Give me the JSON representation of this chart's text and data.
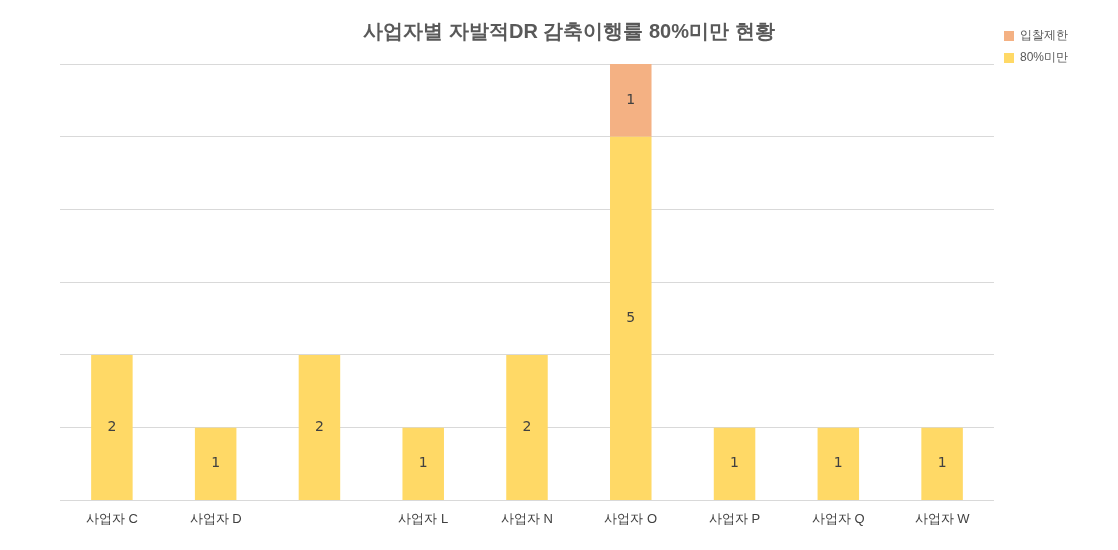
{
  "chart_data": {
    "type": "bar",
    "title": "사업자별 자발적DR 감축이행률 80%미만 현황",
    "stacked": true,
    "categories": [
      "사업자 C",
      "사업자 D",
      null,
      "사업자 L",
      "사업자 N",
      "사업자 O",
      "사업자 P",
      "사업자 Q",
      "사업자 W"
    ],
    "series": [
      {
        "name": "80%미만",
        "color": "#ffd966",
        "values": [
          2,
          1,
          2,
          1,
          2,
          5,
          1,
          1,
          1
        ]
      },
      {
        "name": "입찰제한",
        "color": "#f4b183",
        "values": [
          null,
          null,
          null,
          null,
          null,
          1,
          null,
          null,
          null
        ]
      }
    ],
    "ylim": [
      0,
      6
    ],
    "yticks": [
      {
        "value": 0,
        "label": null
      },
      {
        "value": 1,
        "label": null
      },
      {
        "value": 2,
        "label": null
      },
      {
        "value": 3,
        "label": null
      },
      {
        "value": 4,
        "label": null
      },
      {
        "value": 5,
        "label": null
      },
      {
        "value": 6,
        "label": null
      }
    ],
    "grid": "y",
    "legend": "top right",
    "data_labels": true,
    "tick_labels": "x"
  }
}
